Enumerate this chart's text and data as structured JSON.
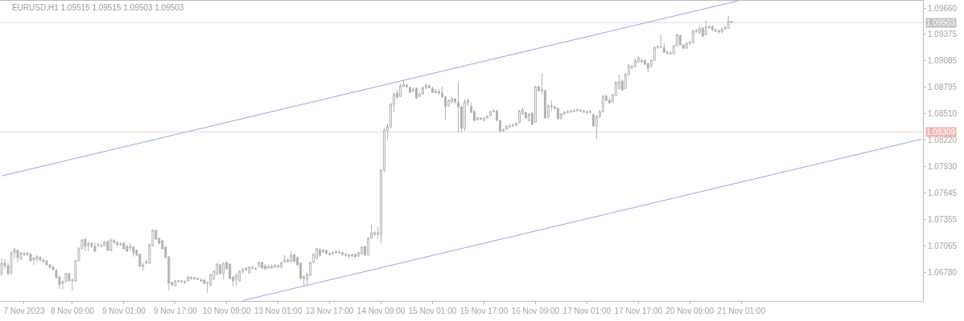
{
  "chart_data": {
    "type": "candlestick",
    "title": "EURUSD,H1 1.09515 1.09515 1.09503 1.09503",
    "categories": [
      null,
      null,
      null,
      null,
      null,
      null,
      null,
      "7 Nov 2023",
      null,
      null,
      null,
      null,
      null,
      null,
      null,
      null,
      null,
      null,
      null,
      null,
      null,
      null,
      "8 Nov 09:00",
      null,
      null,
      null,
      null,
      null,
      null,
      null,
      null,
      null,
      null,
      null,
      null,
      null,
      null,
      null,
      "9 Nov 01:00",
      null,
      null,
      null,
      null,
      null,
      null,
      null,
      null,
      null,
      null,
      null,
      null,
      null,
      null,
      null,
      "9 Nov 17:00",
      null,
      null,
      null,
      null,
      null,
      null,
      null,
      null,
      null,
      null,
      null,
      null,
      null,
      null,
      null,
      "10 Nov 09:00",
      null,
      null,
      null,
      null,
      null,
      null,
      null,
      null,
      null,
      null,
      null,
      null,
      null,
      null,
      null,
      "13 Nov 01:00",
      null,
      null,
      null,
      null,
      null,
      null,
      null,
      null,
      null,
      null,
      null,
      null,
      null,
      null,
      null,
      "13 Nov 17:00",
      null,
      null,
      null,
      null,
      null,
      null,
      null,
      null,
      null,
      null,
      null,
      null,
      null,
      null,
      null,
      "14 Nov 09:00",
      null,
      null,
      null,
      null,
      null,
      null,
      null,
      null,
      null,
      null,
      null,
      null,
      null,
      null,
      null,
      "15 Nov 01:00",
      null,
      null,
      null,
      null,
      null,
      null,
      null,
      null,
      null,
      null,
      null,
      null,
      null,
      null,
      null,
      "15 Nov 17:00",
      null,
      null,
      null,
      null,
      null,
      null,
      null,
      null,
      null,
      null,
      null,
      null,
      null,
      null,
      null,
      "16 Nov 09:00",
      null,
      null,
      null,
      null,
      null,
      null,
      null,
      null,
      null,
      null,
      null,
      null,
      null,
      null,
      null,
      "17 Nov 01:00",
      null,
      null,
      null,
      null,
      null,
      null,
      null,
      null,
      null,
      null,
      null,
      null,
      null,
      null,
      null,
      "17 Nov 17:00",
      null,
      null,
      null,
      null,
      null,
      null,
      null,
      null,
      null,
      null,
      null,
      null,
      null,
      null,
      null,
      "20 Nov 09:00",
      null,
      null,
      null,
      null,
      null,
      null,
      null,
      null,
      null,
      null,
      null,
      null,
      null,
      null,
      null,
      "21 Nov 01:00",
      null,
      null,
      null,
      null,
      null,
      null,
      null,
      null,
      null,
      null,
      null,
      null,
      null,
      null,
      null,
      null,
      null,
      null,
      null,
      null,
      null,
      null,
      null,
      null,
      null,
      null,
      null,
      null,
      null,
      null,
      null,
      null,
      null,
      null,
      null,
      null,
      null,
      null,
      null,
      null,
      null,
      null,
      null,
      null,
      null,
      null,
      null,
      null,
      null,
      null,
      null,
      null,
      null,
      null,
      null,
      null
    ],
    "series": [
      {
        "color": "#b2b2b2",
        "ohlc": [
          [
            1.06764,
            1.0693,
            1.06738,
            1.06878
          ],
          [
            1.06878,
            1.06921,
            1.06816,
            1.06851
          ],
          [
            1.06851,
            1.06878,
            1.06746,
            1.06764
          ],
          [
            1.06764,
            1.07009,
            1.06755,
            1.06991
          ],
          [
            1.06991,
            1.07044,
            1.0693,
            1.07026
          ],
          [
            1.07018,
            1.07026,
            1.06886,
            1.06939
          ],
          [
            1.06921,
            1.07,
            1.06913,
            1.06991
          ],
          [
            1.06983,
            1.07,
            1.06956,
            1.06974
          ],
          [
            1.06974,
            1.07,
            1.06956,
            1.06991
          ],
          [
            1.06974,
            1.06991,
            1.06895,
            1.06904
          ],
          [
            1.0693,
            1.06948,
            1.0686,
            1.06913
          ],
          [
            1.06921,
            1.06965,
            1.06886,
            1.06948
          ],
          [
            1.06939,
            1.06956,
            1.06895,
            1.06913
          ],
          [
            1.06913,
            1.0693,
            1.06878,
            1.06895
          ],
          [
            1.06904,
            1.06913,
            1.06851,
            1.0686
          ],
          [
            1.0686,
            1.06869,
            1.06816,
            1.06834
          ],
          [
            1.06834,
            1.06851,
            1.06799,
            1.06808
          ],
          [
            1.06799,
            1.06816,
            1.06711,
            1.0672
          ],
          [
            1.06729,
            1.06738,
            1.06598,
            1.06641
          ],
          [
            1.06659,
            1.06694,
            1.06589,
            1.06676
          ],
          [
            1.06676,
            1.06773,
            1.06668,
            1.06764
          ],
          [
            1.06764,
            1.06773,
            1.06676,
            1.06685
          ],
          [
            1.06685,
            1.06711,
            1.0658,
            1.06694
          ],
          [
            1.06685,
            1.06921,
            1.06676,
            1.06904
          ],
          [
            1.06904,
            1.07053,
            1.06895,
            1.07035
          ],
          [
            1.07035,
            1.0714,
            1.07026,
            1.07131
          ],
          [
            1.0714,
            1.07149,
            1.07009,
            1.07061
          ],
          [
            1.0707,
            1.07114,
            1.07009,
            1.07096
          ],
          [
            1.07096,
            1.07105,
            1.07044,
            1.07061
          ],
          [
            1.07061,
            1.07105,
            1.07,
            1.07009
          ],
          [
            1.0707,
            1.07096,
            1.07053,
            1.07079
          ],
          [
            1.0707,
            1.07088,
            1.07053,
            1.07061
          ],
          [
            1.0707,
            1.07123,
            1.07061,
            1.07105
          ],
          [
            1.07114,
            1.07131,
            1.07009,
            1.07018
          ],
          [
            1.07018,
            1.07149,
            1.07009,
            1.07131
          ],
          [
            1.07123,
            1.0714,
            1.07088,
            1.07105
          ],
          [
            1.07105,
            1.07114,
            1.0707,
            1.07079
          ],
          [
            1.07088,
            1.07105,
            1.0707,
            1.07079
          ],
          [
            1.07096,
            1.07105,
            1.07026,
            1.07035
          ],
          [
            1.07061,
            1.07079,
            1.07,
            1.07009
          ],
          [
            1.07044,
            1.07096,
            1.07009,
            1.07061
          ],
          [
            1.07053,
            1.07061,
            1.06948,
            1.06991
          ],
          [
            1.07018,
            1.07026,
            1.06956,
            1.06965
          ],
          [
            1.06974,
            1.06983,
            1.06834,
            1.06843
          ],
          [
            1.06843,
            1.06878,
            1.06799,
            1.0686
          ],
          [
            1.06878,
            1.06913,
            1.06869,
            1.06895
          ],
          [
            1.06878,
            1.07088,
            1.06869,
            1.07079
          ],
          [
            1.0707,
            1.07245,
            1.07061,
            1.07236
          ],
          [
            1.07236,
            1.07245,
            1.07131,
            1.0714
          ],
          [
            1.07149,
            1.07158,
            1.07088,
            1.07096
          ],
          [
            1.07123,
            1.07131,
            1.07026,
            1.07035
          ],
          [
            1.07053,
            1.07061,
            1.0693,
            1.06939
          ],
          [
            1.06948,
            1.06956,
            1.0658,
            1.06659
          ],
          [
            1.06668,
            1.06676,
            1.06624,
            1.06641
          ],
          [
            1.06633,
            1.06694,
            1.06624,
            1.06685
          ],
          [
            1.06676,
            1.06694,
            1.06668,
            1.06685
          ],
          [
            1.06676,
            1.06694,
            1.06659,
            1.06685
          ],
          [
            1.06676,
            1.06694,
            1.0665,
            1.06668
          ],
          [
            1.06685,
            1.06738,
            1.06676,
            1.06729
          ],
          [
            1.0672,
            1.06738,
            1.06703,
            1.06711
          ],
          [
            1.06711,
            1.06729,
            1.06694,
            1.0672
          ],
          [
            1.06703,
            1.0672,
            1.06694,
            1.06711
          ],
          [
            1.06694,
            1.06711,
            1.06676,
            1.06685
          ],
          [
            1.06694,
            1.06703,
            1.0665,
            1.06659
          ],
          [
            1.06659,
            1.06676,
            1.06554,
            1.06668
          ],
          [
            1.06641,
            1.06764,
            1.06624,
            1.06755
          ],
          [
            1.06703,
            1.06799,
            1.06694,
            1.0679
          ],
          [
            1.06755,
            1.06878,
            1.06746,
            1.06869
          ],
          [
            1.0686,
            1.06869,
            1.06755,
            1.06764
          ],
          [
            1.06764,
            1.06886,
            1.06703,
            1.06878
          ],
          [
            1.06886,
            1.06895,
            1.06808,
            1.06816
          ],
          [
            1.06869,
            1.06878,
            1.06703,
            1.06711
          ],
          [
            1.06729,
            1.06738,
            1.06624,
            1.06685
          ],
          [
            1.06703,
            1.06773,
            1.06624,
            1.06746
          ],
          [
            1.06685,
            1.06799,
            1.06676,
            1.0679
          ],
          [
            1.0679,
            1.06825,
            1.06764,
            1.06808
          ],
          [
            1.06808,
            1.06834,
            1.0679,
            1.06825
          ],
          [
            1.06773,
            1.06843,
            1.06764,
            1.06834
          ],
          [
            1.06834,
            1.06851,
            1.06808,
            1.06825
          ],
          [
            1.06825,
            1.06834,
            1.06799,
            1.06816
          ],
          [
            1.06843,
            1.06895,
            1.06834,
            1.06886
          ],
          [
            1.06886,
            1.06895,
            1.06816,
            1.06825
          ],
          [
            1.06851,
            1.06869,
            1.06808,
            1.06816
          ],
          [
            1.06825,
            1.0686,
            1.06816,
            1.06843
          ],
          [
            1.06843,
            1.0686,
            1.06816,
            1.06825
          ],
          [
            1.06834,
            1.06869,
            1.06834,
            1.06851
          ],
          [
            1.06851,
            1.0686,
            1.06825,
            1.06843
          ],
          [
            1.06834,
            1.06895,
            1.06825,
            1.06886
          ],
          [
            1.06895,
            1.06965,
            1.06878,
            1.06913
          ],
          [
            1.06913,
            1.0693,
            1.06886,
            1.06895
          ],
          [
            1.06895,
            1.07009,
            1.06886,
            1.06965
          ],
          [
            1.06974,
            1.06983,
            1.06886,
            1.06895
          ],
          [
            1.06939,
            1.06956,
            1.06851,
            1.0686
          ],
          [
            1.06878,
            1.06886,
            1.06703,
            1.06711
          ],
          [
            1.06711,
            1.06746,
            1.06633,
            1.06729
          ],
          [
            1.06703,
            1.06773,
            1.06641,
            1.06755
          ],
          [
            1.06746,
            1.06895,
            1.06738,
            1.06886
          ],
          [
            1.06886,
            1.06991,
            1.06878,
            1.06974
          ],
          [
            1.0693,
            1.07044,
            1.06921,
            1.07035
          ],
          [
            1.07026,
            1.07044,
            1.06948,
            1.06965
          ],
          [
            1.07,
            1.07035,
            1.06991,
            1.07018
          ],
          [
            1.07018,
            1.07026,
            1.06974,
            1.06983
          ],
          [
            1.06983,
            1.07,
            1.06965,
            1.06974
          ],
          [
            1.06983,
            1.07009,
            1.06974,
            1.06991
          ],
          [
            1.06991,
            1.07018,
            1.06983,
            1.07
          ],
          [
            1.07,
            1.07018,
            1.06983,
            1.06991
          ],
          [
            1.06991,
            1.07009,
            1.06956,
            1.06974
          ],
          [
            1.06974,
            1.06991,
            1.06948,
            1.06965
          ],
          [
            1.06965,
            1.06983,
            1.06939,
            1.06956
          ],
          [
            1.06956,
            1.06983,
            1.06948,
            1.06974
          ],
          [
            1.06974,
            1.06983,
            1.06939,
            1.06948
          ],
          [
            1.06956,
            1.07,
            1.06948,
            1.06991
          ],
          [
            1.06983,
            1.07061,
            1.06974,
            1.07053
          ],
          [
            1.07061,
            1.0707,
            1.06956,
            1.06965
          ],
          [
            1.06965,
            1.07158,
            1.06956,
            1.07149
          ],
          [
            1.07149,
            1.07298,
            1.0714,
            1.0721
          ],
          [
            1.0721,
            1.07228,
            1.07175,
            1.07193
          ],
          [
            1.07193,
            1.07271,
            1.07149,
            1.0721
          ],
          [
            1.07184,
            1.0791,
            1.07096,
            1.07892
          ],
          [
            1.07892,
            1.08348,
            1.07866,
            1.0833
          ],
          [
            1.08321,
            1.084,
            1.08216,
            1.08374
          ],
          [
            1.08365,
            1.08628,
            1.08348,
            1.0861
          ],
          [
            1.0861,
            1.08741,
            1.08523,
            1.08724
          ],
          [
            1.08733,
            1.08768,
            1.08671,
            1.08689
          ],
          [
            1.08698,
            1.08838,
            1.08689,
            1.08811
          ],
          [
            1.08803,
            1.08873,
            1.08794,
            1.08829
          ],
          [
            1.0882,
            1.08838,
            1.08785,
            1.08803
          ],
          [
            1.08794,
            1.08803,
            1.08733,
            1.08741
          ],
          [
            1.08759,
            1.08794,
            1.08741,
            1.08776
          ],
          [
            1.08785,
            1.08794,
            1.08671,
            1.0868
          ],
          [
            1.08698,
            1.08741,
            1.08689,
            1.08724
          ],
          [
            1.08724,
            1.08803,
            1.08715,
            1.08794
          ],
          [
            1.08785,
            1.08838,
            1.08776,
            1.0882
          ],
          [
            1.08811,
            1.08829,
            1.08785,
            1.08794
          ],
          [
            1.08785,
            1.08803,
            1.08733,
            1.08741
          ],
          [
            1.0875,
            1.08776,
            1.08733,
            1.08741
          ],
          [
            1.0875,
            1.08776,
            1.08715,
            1.08733
          ],
          [
            1.08733,
            1.08803,
            1.0868,
            1.08689
          ],
          [
            1.08689,
            1.08706,
            1.08435,
            1.08584
          ],
          [
            1.08593,
            1.08663,
            1.08584,
            1.08654
          ],
          [
            1.08636,
            1.08689,
            1.08628,
            1.08671
          ],
          [
            1.08671,
            1.0868,
            1.08619,
            1.08636
          ],
          [
            1.08636,
            1.08855,
            1.08304,
            1.08584
          ],
          [
            1.08584,
            1.08593,
            1.08304,
            1.08348
          ],
          [
            1.08348,
            1.08663,
            1.08321,
            1.08636
          ],
          [
            1.08628,
            1.08671,
            1.08593,
            1.08654
          ],
          [
            1.08584,
            1.08628,
            1.08514,
            1.08523
          ],
          [
            1.08531,
            1.08549,
            1.08426,
            1.08435
          ],
          [
            1.08444,
            1.08479,
            1.08435,
            1.08461
          ],
          [
            1.08461,
            1.0847,
            1.08435,
            1.08453
          ],
          [
            1.08435,
            1.0847,
            1.08426,
            1.08461
          ],
          [
            1.08461,
            1.08496,
            1.08461,
            1.08479
          ],
          [
            1.08488,
            1.0854,
            1.08479,
            1.08531
          ],
          [
            1.08531,
            1.08558,
            1.08523,
            1.0854
          ],
          [
            1.0854,
            1.08549,
            1.08426,
            1.08435
          ],
          [
            1.08435,
            1.08444,
            1.08304,
            1.08321
          ],
          [
            1.08321,
            1.08348,
            1.08313,
            1.0833
          ],
          [
            1.08339,
            1.08383,
            1.0833,
            1.08374
          ],
          [
            1.08374,
            1.08391,
            1.08356,
            1.08365
          ],
          [
            1.08374,
            1.084,
            1.08365,
            1.08383
          ],
          [
            1.08383,
            1.08418,
            1.08374,
            1.084
          ],
          [
            1.08409,
            1.08549,
            1.084,
            1.0854
          ],
          [
            1.08505,
            1.08575,
            1.08496,
            1.08549
          ],
          [
            1.08523,
            1.08531,
            1.08453,
            1.08461
          ],
          [
            1.08435,
            1.08514,
            1.08426,
            1.08505
          ],
          [
            1.08514,
            1.08523,
            1.08383,
            1.08391
          ],
          [
            1.08418,
            1.08811,
            1.08409,
            1.08803
          ],
          [
            1.08803,
            1.08811,
            1.0875,
            1.08759
          ],
          [
            1.08768,
            1.08951,
            1.08715,
            1.08759
          ],
          [
            1.08759,
            1.08768,
            1.08453,
            1.08461
          ],
          [
            1.08479,
            1.0861,
            1.08453,
            1.08593
          ],
          [
            1.08593,
            1.08654,
            1.0854,
            1.08584
          ],
          [
            1.08584,
            1.08593,
            1.08549,
            1.08566
          ],
          [
            1.08566,
            1.08575,
            1.08444,
            1.08453
          ],
          [
            1.08453,
            1.08514,
            1.08444,
            1.08505
          ],
          [
            1.08505,
            1.0854,
            1.08505,
            1.08523
          ],
          [
            1.08523,
            1.08549,
            1.08514,
            1.08531
          ],
          [
            1.08531,
            1.08549,
            1.08514,
            1.0854
          ],
          [
            1.08531,
            1.08558,
            1.08523,
            1.0854
          ],
          [
            1.0854,
            1.08566,
            1.08531,
            1.08549
          ],
          [
            1.08549,
            1.08558,
            1.08523,
            1.0854
          ],
          [
            1.0854,
            1.08549,
            1.08514,
            1.08531
          ],
          [
            1.08531,
            1.0854,
            1.08505,
            1.08523
          ],
          [
            1.08523,
            1.08549,
            1.08514,
            1.08531
          ],
          [
            1.08496,
            1.08514,
            1.08365,
            1.08374
          ],
          [
            1.08374,
            1.08496,
            1.08234,
            1.08479
          ],
          [
            1.08479,
            1.08549,
            1.08461,
            1.08531
          ],
          [
            1.08531,
            1.08715,
            1.08523,
            1.08698
          ],
          [
            1.08698,
            1.08715,
            1.08645,
            1.08654
          ],
          [
            1.08654,
            1.0868,
            1.0861,
            1.08628
          ],
          [
            1.08636,
            1.08724,
            1.08628,
            1.08715
          ],
          [
            1.08706,
            1.08864,
            1.08698,
            1.08846
          ],
          [
            1.08785,
            1.08934,
            1.08776,
            1.08855
          ],
          [
            1.08864,
            1.08881,
            1.08759,
            1.08768
          ],
          [
            1.08785,
            1.08951,
            1.08776,
            1.08934
          ],
          [
            1.08934,
            1.09048,
            1.08925,
            1.0903
          ],
          [
            1.09021,
            1.09039,
            1.08995,
            1.09013
          ],
          [
            1.09021,
            1.09109,
            1.09013,
            1.09091
          ],
          [
            1.09074,
            1.09135,
            1.09065,
            1.09118
          ],
          [
            1.09091,
            1.09109,
            1.09065,
            1.09074
          ],
          [
            1.09091,
            1.091,
            1.09039,
            1.09048
          ],
          [
            1.09056,
            1.09065,
            1.0896,
            1.09004
          ],
          [
            1.0903,
            1.091,
            1.09013,
            1.09091
          ],
          [
            1.09091,
            1.0924,
            1.09083,
            1.09231
          ],
          [
            1.09231,
            1.09258,
            1.09214,
            1.0924
          ],
          [
            1.09231,
            1.09371,
            1.09223,
            1.0924
          ],
          [
            1.09231,
            1.09284,
            1.0917,
            1.09179
          ],
          [
            1.09179,
            1.09196,
            1.09153,
            1.0917
          ],
          [
            1.0917,
            1.09188,
            1.09153,
            1.09161
          ],
          [
            1.09161,
            1.09258,
            1.09153,
            1.09249
          ],
          [
            1.09249,
            1.0938,
            1.0924,
            1.09371
          ],
          [
            1.09363,
            1.09371,
            1.09249,
            1.09258
          ],
          [
            1.09258,
            1.09266,
            1.09214,
            1.09223
          ],
          [
            1.09223,
            1.09293,
            1.09214,
            1.09275
          ],
          [
            1.09275,
            1.09301,
            1.09258,
            1.09284
          ],
          [
            1.09284,
            1.09424,
            1.09275,
            1.09406
          ],
          [
            1.09406,
            1.09433,
            1.09389,
            1.09415
          ],
          [
            1.09389,
            1.09459,
            1.0938,
            1.09441
          ],
          [
            1.09441,
            1.09459,
            1.09345,
            1.09354
          ],
          [
            1.09371,
            1.09529,
            1.09363,
            1.09459
          ],
          [
            1.09459,
            1.09476,
            1.09433,
            1.0945
          ],
          [
            1.09459,
            1.09476,
            1.09415,
            1.09424
          ],
          [
            1.09424,
            1.09441,
            1.09398,
            1.09415
          ],
          [
            1.09415,
            1.09424,
            1.0938,
            1.09398
          ],
          [
            1.09398,
            1.0945,
            1.09389,
            1.09433
          ],
          [
            1.09433,
            1.09468,
            1.09424,
            1.0945
          ],
          [
            1.09441,
            1.09573,
            1.09433,
            1.09515
          ],
          [
            1.09515,
            1.09515,
            1.09503,
            1.09503
          ],
          null,
          null,
          null,
          null,
          null,
          null,
          null,
          null,
          null,
          null,
          null,
          null,
          null,
          null,
          null,
          null,
          null,
          null,
          null,
          null,
          null,
          null,
          null,
          null,
          null,
          null,
          null,
          null,
          null,
          null,
          null,
          null,
          null,
          null,
          null,
          null,
          null,
          null,
          null,
          null,
          null,
          null,
          null,
          null,
          null,
          null,
          null,
          null,
          null,
          null,
          null,
          null,
          null,
          null,
          null,
          null,
          null,
          null,
          null
        ]
      },
      {
        "type": "line",
        "color": "#a0a0f0",
        "values": [
          1.0783,
          null,
          null,
          null,
          null,
          null,
          null,
          null,
          null,
          null,
          null,
          null,
          null,
          null,
          null,
          null,
          null,
          null,
          null,
          null,
          null,
          null,
          null,
          null,
          null,
          null,
          null,
          null,
          null,
          null,
          null,
          null,
          null,
          null,
          null,
          null,
          null,
          null,
          null,
          null,
          null,
          null,
          null,
          null,
          null,
          null,
          null,
          null,
          null,
          null,
          null,
          null,
          null,
          null,
          null,
          null,
          null,
          null,
          null,
          null,
          null,
          null,
          null,
          null,
          null,
          null,
          null,
          null,
          null,
          null,
          null,
          null,
          null,
          null,
          null,
          null,
          null,
          null,
          null,
          null,
          null,
          null,
          null,
          null,
          null,
          null,
          null,
          null,
          null,
          null,
          null,
          null,
          null,
          null,
          null,
          null,
          null,
          null,
          null,
          null,
          null,
          null,
          null,
          null,
          null,
          null,
          null,
          null,
          null,
          null,
          null,
          null,
          null,
          null,
          null,
          null,
          null,
          null,
          null,
          null,
          null,
          null,
          null,
          null,
          null,
          null,
          null,
          null,
          null,
          null,
          null,
          null,
          null,
          null,
          null,
          null,
          null,
          null,
          null,
          null,
          null,
          null,
          null,
          null,
          null,
          null,
          null,
          null,
          null,
          null,
          null,
          null,
          null,
          null,
          null,
          null,
          null,
          null,
          null,
          null,
          null,
          null,
          null,
          null,
          null,
          null,
          null,
          null,
          null,
          null,
          null,
          null,
          null,
          null,
          null,
          null,
          null,
          null,
          null,
          null,
          null,
          null,
          null,
          null,
          null,
          null,
          null,
          null,
          null,
          null,
          null,
          null,
          null,
          null,
          null,
          null,
          null,
          null,
          null,
          null,
          null,
          null,
          null,
          null,
          null,
          null,
          null,
          null,
          null,
          null,
          null,
          null,
          null,
          null,
          null,
          null,
          null,
          null,
          null,
          null,
          null,
          null,
          null,
          null,
          null,
          null,
          null,
          null,
          null,
          1.0974,
          null,
          null,
          null,
          null,
          null,
          null,
          null,
          null,
          null,
          null,
          null,
          null,
          null,
          null,
          null,
          null,
          null,
          null,
          null,
          null,
          null,
          null,
          null,
          null,
          null,
          null,
          null,
          null,
          null,
          null,
          null,
          null,
          null,
          null,
          null,
          null,
          null,
          null,
          null,
          null,
          null,
          null,
          null,
          null,
          null,
          null,
          null,
          null,
          null,
          null,
          null,
          null,
          null,
          null,
          null,
          null,
          null
        ]
      },
      {
        "type": "line",
        "color": "#a0a0f0",
        "values": [
          null,
          null,
          null,
          null,
          null,
          null,
          null,
          null,
          null,
          null,
          null,
          null,
          null,
          null,
          null,
          null,
          null,
          null,
          null,
          null,
          null,
          null,
          null,
          null,
          null,
          null,
          null,
          null,
          null,
          null,
          null,
          null,
          null,
          null,
          null,
          null,
          null,
          null,
          null,
          null,
          null,
          null,
          null,
          null,
          null,
          null,
          null,
          null,
          null,
          null,
          null,
          null,
          null,
          null,
          null,
          null,
          null,
          null,
          null,
          null,
          null,
          null,
          null,
          null,
          null,
          null,
          null,
          null,
          null,
          null,
          null,
          null,
          null,
          null,
          null,
          1.0647,
          null,
          null,
          null,
          null,
          null,
          null,
          null,
          null,
          null,
          null,
          null,
          null,
          null,
          null,
          null,
          null,
          null,
          null,
          null,
          null,
          null,
          null,
          null,
          null,
          null,
          null,
          null,
          null,
          null,
          null,
          null,
          null,
          null,
          null,
          null,
          null,
          null,
          null,
          null,
          null,
          null,
          null,
          null,
          null,
          null,
          null,
          null,
          null,
          null,
          null,
          null,
          null,
          null,
          null,
          null,
          null,
          null,
          null,
          null,
          null,
          null,
          null,
          null,
          null,
          null,
          null,
          null,
          null,
          null,
          null,
          null,
          null,
          null,
          null,
          null,
          null,
          null,
          null,
          null,
          null,
          null,
          null,
          null,
          null,
          null,
          null,
          null,
          null,
          null,
          null,
          null,
          null,
          null,
          null,
          null,
          null,
          null,
          null,
          null,
          null,
          null,
          null,
          null,
          null,
          null,
          null,
          null,
          null,
          null,
          null,
          null,
          null,
          null,
          null,
          null,
          null,
          null,
          null,
          null,
          null,
          null,
          null,
          null,
          null,
          null,
          null,
          null,
          null,
          null,
          null,
          null,
          null,
          null,
          null,
          null,
          null,
          null,
          null,
          null,
          null,
          null,
          null,
          null,
          null,
          null,
          null,
          null,
          null,
          null,
          null,
          null,
          null,
          null,
          null,
          null,
          null,
          null,
          null,
          null,
          null,
          null,
          null,
          null,
          null,
          null,
          null,
          null,
          null,
          null,
          null,
          null,
          null,
          null,
          null,
          null,
          null,
          null,
          null,
          null,
          null,
          null,
          null,
          null,
          null,
          null,
          null,
          null,
          null,
          null,
          null,
          null,
          null,
          null,
          null,
          null,
          null,
          null,
          null,
          null,
          null,
          null,
          null,
          null,
          null,
          null,
          null,
          null,
          null,
          null,
          null,
          1.0823
        ]
      }
    ],
    "ylim": [
      1.06466,
      1.0974
    ],
    "yticks": [
      {
        "value": 1.0966,
        "label": "1.09660"
      },
      1.09375,
      1.09085,
      1.08795,
      {
        "value": 1.0851,
        "label": "1.08510"
      },
      {
        "value": 1.0822,
        "label": "1.08220"
      },
      {
        "value": 1.0793,
        "label": "1.07930"
      },
      1.07645,
      1.07355,
      1.07065,
      {
        "value": 1.0678,
        "label": "1.06780"
      }
    ],
    "ref_lines": [
      {
        "axis": "y",
        "value": 1.09503,
        "label": "1.09503",
        "color": "#c2c2c2"
      },
      {
        "axis": "y",
        "value": 1.08309,
        "label": "1.08309",
        "color": "#f2b4b4"
      }
    ]
  }
}
